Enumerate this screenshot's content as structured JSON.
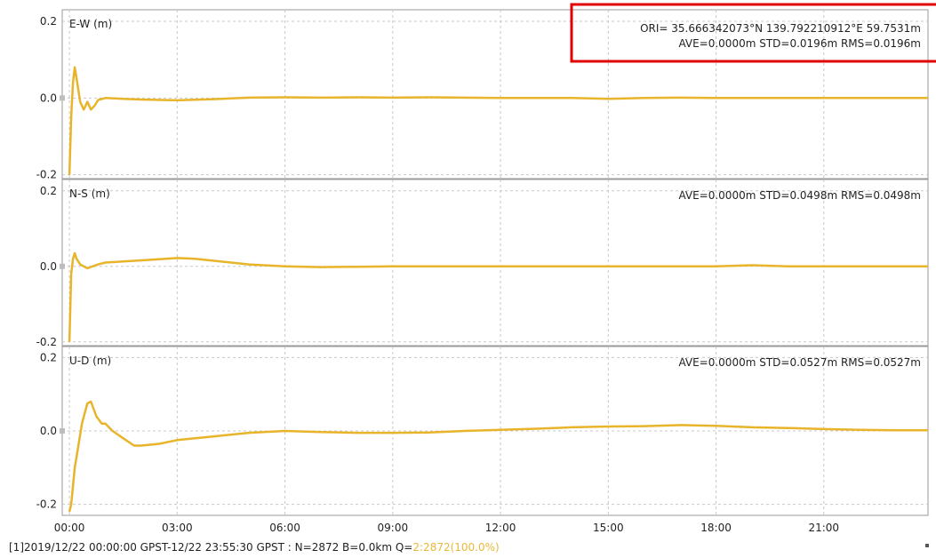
{
  "chart_data": {
    "type": "line",
    "x_ticks": [
      "00:00",
      "03:00",
      "06:00",
      "09:00",
      "12:00",
      "15:00",
      "18:00",
      "21:00"
    ],
    "x_tick_hours": [
      0,
      3,
      6,
      9,
      12,
      15,
      18,
      21
    ],
    "x_range_hours": [
      -0.2,
      23.9
    ],
    "color": "#e8b42a",
    "grid": true,
    "panels": [
      {
        "label": "E-W (m)",
        "ylim": [
          -0.21,
          0.23
        ],
        "y_ticks": [
          -0.2,
          0.0,
          0.2
        ],
        "y_tick_labels": [
          "-0.2",
          "0.0",
          "0.2"
        ],
        "stats_line1": "ORI= 35.666342073°N  139.792210912°E 59.7531m",
        "stats_line2": "AVE=0.0000m STD=0.0196m RMS=0.0196m",
        "x": [
          0,
          0.05,
          0.1,
          0.15,
          0.2,
          0.25,
          0.3,
          0.4,
          0.5,
          0.6,
          0.7,
          0.8,
          1.0,
          1.5,
          2,
          3,
          4,
          5,
          6,
          7,
          8,
          9,
          10,
          11,
          12,
          13,
          14,
          15,
          16,
          17,
          18,
          19,
          20,
          21,
          22,
          23,
          23.9
        ],
        "y": [
          -0.2,
          -0.05,
          0.04,
          0.08,
          0.05,
          0.02,
          -0.01,
          -0.03,
          -0.01,
          -0.03,
          -0.02,
          -0.005,
          0.0,
          -0.002,
          -0.004,
          -0.006,
          -0.003,
          0.001,
          0.002,
          0.001,
          0.002,
          0.001,
          0.002,
          0.001,
          0.0,
          0.0,
          0.0,
          -0.002,
          0.0,
          0.001,
          0.0,
          0.0,
          0.0,
          0.0,
          0.0,
          0.0,
          0.0
        ]
      },
      {
        "label": "N-S (m)",
        "ylim": [
          -0.21,
          0.23
        ],
        "y_ticks": [
          -0.2,
          0.0,
          0.2
        ],
        "y_tick_labels": [
          "-0.2",
          "0.0",
          "0.2"
        ],
        "stats_line1": "",
        "stats_line2": "AVE=0.0000m STD=0.0498m RMS=0.0498m",
        "x": [
          0,
          0.05,
          0.1,
          0.15,
          0.2,
          0.3,
          0.5,
          0.8,
          1.0,
          1.5,
          2,
          2.5,
          3,
          3.5,
          4,
          4.5,
          5,
          6,
          7,
          8,
          9,
          10,
          11,
          12,
          13,
          14,
          15,
          16,
          17,
          18,
          19,
          20,
          21,
          22,
          23,
          23.9
        ],
        "y": [
          -0.2,
          -0.02,
          0.02,
          0.035,
          0.02,
          0.005,
          -0.005,
          0.005,
          0.01,
          0.013,
          0.016,
          0.019,
          0.022,
          0.02,
          0.015,
          0.01,
          0.005,
          0.0,
          -0.002,
          -0.001,
          0.0,
          0.0,
          0.0,
          0.0,
          0.0,
          0.0,
          0.0,
          0.0,
          0.0,
          0.0,
          0.003,
          0.0,
          0.0,
          0.0,
          0.0,
          0.0
        ]
      },
      {
        "label": "U-D (m)",
        "ylim": [
          -0.23,
          0.23
        ],
        "y_ticks": [
          -0.2,
          0.0,
          0.2
        ],
        "y_tick_labels": [
          "-0.2",
          "0.0",
          "0.2"
        ],
        "stats_line1": "",
        "stats_line2": "AVE=0.0000m STD=0.0527m RMS=0.0527m",
        "x": [
          0,
          0.05,
          0.1,
          0.15,
          0.25,
          0.35,
          0.5,
          0.6,
          0.75,
          0.9,
          1.0,
          1.2,
          1.5,
          1.8,
          2,
          2.5,
          3,
          4,
          5,
          6,
          7,
          8,
          9,
          10,
          11,
          12,
          13,
          14,
          15,
          16,
          17,
          18,
          19,
          20,
          21,
          22,
          23,
          23.9
        ],
        "y": [
          -0.22,
          -0.2,
          -0.15,
          -0.1,
          -0.04,
          0.02,
          0.075,
          0.08,
          0.04,
          0.02,
          0.02,
          0.0,
          -0.02,
          -0.04,
          -0.04,
          -0.035,
          -0.025,
          -0.015,
          -0.005,
          0.0,
          -0.003,
          -0.005,
          -0.005,
          -0.004,
          0.0,
          0.003,
          0.006,
          0.01,
          0.012,
          0.013,
          0.016,
          0.014,
          0.01,
          0.008,
          0.005,
          0.003,
          0.002,
          0.002
        ]
      }
    ]
  },
  "status": {
    "prefix": "[1]2019/12/22 00:00:00 GPST-12/22 23:55:30 GPST : N=2872 B=0.0km Q=",
    "q_value": "2:2872(100.0%)"
  }
}
